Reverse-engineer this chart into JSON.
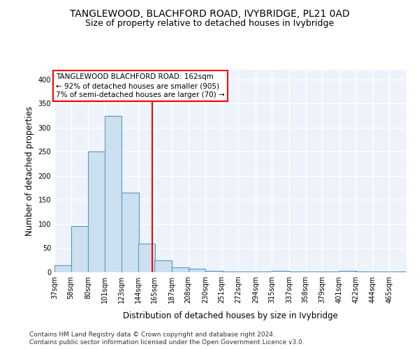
{
  "title": "TANGLEWOOD, BLACHFORD ROAD, IVYBRIDGE, PL21 0AD",
  "subtitle": "Size of property relative to detached houses in Ivybridge",
  "xlabel": "Distribution of detached houses by size in Ivybridge",
  "ylabel": "Number of detached properties",
  "footnote1": "Contains HM Land Registry data © Crown copyright and database right 2024.",
  "footnote2": "Contains public sector information licensed under the Open Government Licence v3.0.",
  "annotation_line1": "TANGLEWOOD BLACHFORD ROAD: 162sqm",
  "annotation_line2": "← 92% of detached houses are smaller (905)",
  "annotation_line3": "7% of semi-detached houses are larger (70) →",
  "bar_color": "#cce0f0",
  "bar_edge_color": "#5599cc",
  "red_line_x": 162,
  "categories": [
    "37sqm",
    "58sqm",
    "80sqm",
    "101sqm",
    "123sqm",
    "144sqm",
    "165sqm",
    "187sqm",
    "208sqm",
    "230sqm",
    "251sqm",
    "272sqm",
    "294sqm",
    "315sqm",
    "337sqm",
    "358sqm",
    "379sqm",
    "401sqm",
    "422sqm",
    "444sqm",
    "465sqm"
  ],
  "bin_starts": [
    37,
    58,
    80,
    101,
    123,
    144,
    165,
    187,
    208,
    230,
    251,
    272,
    294,
    315,
    337,
    358,
    379,
    401,
    422,
    444,
    465
  ],
  "bin_width": 22,
  "values": [
    15,
    95,
    250,
    325,
    165,
    60,
    25,
    10,
    7,
    3,
    2,
    2,
    2,
    3,
    1,
    2,
    1,
    3,
    1,
    2,
    1
  ],
  "ylim": [
    0,
    420
  ],
  "yticks": [
    0,
    50,
    100,
    150,
    200,
    250,
    300,
    350,
    400
  ],
  "background_color": "#eef3fb",
  "grid_color": "#ffffff",
  "title_fontsize": 10,
  "subtitle_fontsize": 9,
  "axis_label_fontsize": 8.5,
  "tick_fontsize": 7,
  "annotation_fontsize": 7.5,
  "footnote_fontsize": 6.5
}
